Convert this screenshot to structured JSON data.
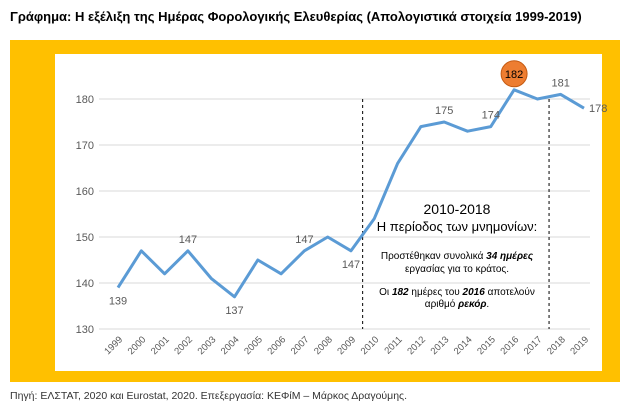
{
  "title": "Γράφημα: Η εξέλιξη της Ημέρας Φορολογικής Ελευθερίας (Απολογιστικά στοιχεία 1999-2019)",
  "source": "Πηγή: ΕΛΣΤΑΤ, 2020 και Eurostat, 2020. Επεξεργασία: ΚΕΦίΜ – Μάρκος Δραγούμης.",
  "colors": {
    "frame": "#ffc000",
    "line": "#5b9bd5",
    "highlight": "#ed7d31",
    "text": "#595959"
  },
  "annotation": {
    "heading": "2010-2018",
    "subheading": "Η περίοδος των μνημονίων:",
    "line1a": "Προστέθηκαν συνολικά ",
    "line1b": "34 ημέρες",
    "line2": "εργασίας για το κράτος.",
    "line3a": "Οι ",
    "line3b": "182",
    "line3c": " ημέρες του ",
    "line3d": "2016",
    "line3e": " αποτελούν",
    "line4a": "αριθμό ",
    "line4b": "ρεκόρ",
    "line4c": "."
  },
  "chart_data": {
    "type": "line",
    "categories": [
      "1999",
      "2000",
      "2001",
      "2002",
      "2003",
      "2004",
      "2005",
      "2006",
      "2007",
      "2008",
      "2009",
      "2010",
      "2011",
      "2012",
      "2013",
      "2014",
      "2015",
      "2016",
      "2017",
      "2018",
      "2019"
    ],
    "values": [
      139,
      147,
      142,
      147,
      141,
      137,
      145,
      142,
      147,
      150,
      147,
      154,
      166,
      174,
      175,
      173,
      174,
      182,
      180,
      181,
      178
    ],
    "labeled": [
      "1999",
      "2002",
      "2004",
      "2007",
      "2009",
      "2013",
      "2015",
      "2016",
      "2018",
      "2019"
    ],
    "highlight": "2016",
    "yticks": [
      130,
      140,
      150,
      160,
      170,
      180
    ],
    "ylim": [
      130,
      187
    ],
    "period_markers": [
      "2009.5",
      "2017.5"
    ],
    "grid": "horizontal"
  }
}
